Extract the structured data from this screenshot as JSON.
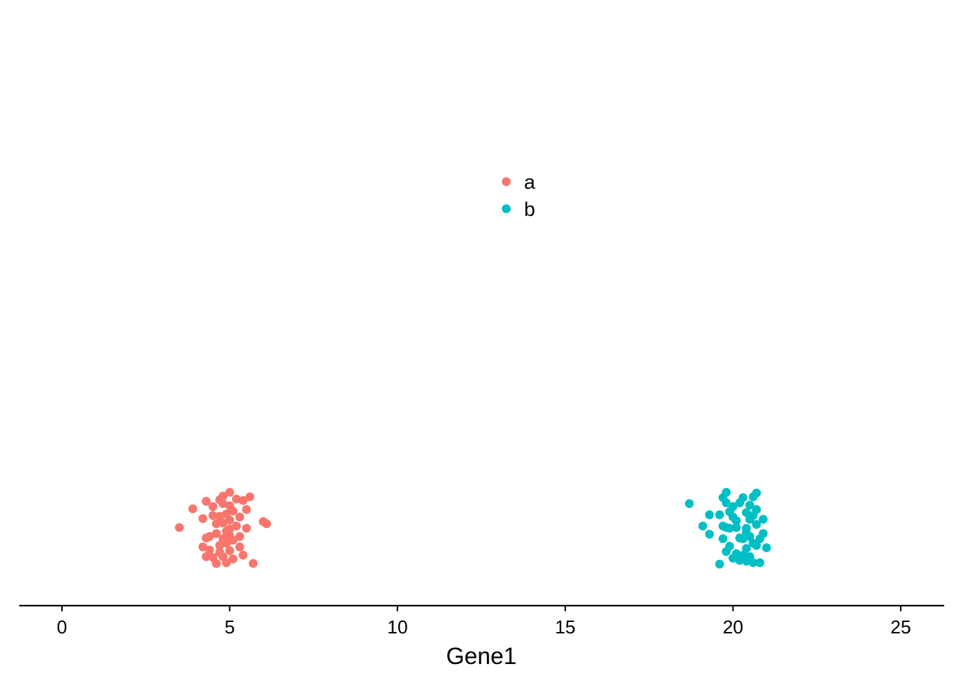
{
  "chart_data": {
    "type": "scatter",
    "title": "",
    "xlabel": "Gene1",
    "ylabel": "",
    "xlim": [
      -1.25,
      26.3
    ],
    "x_ticks": [
      "0",
      "5",
      "10",
      "15",
      "20",
      "25"
    ],
    "grid": false,
    "legend_position": "top-center",
    "series": [
      {
        "name": "a",
        "color": "#F8766D",
        "x": [
          3.5,
          3.9,
          4.2,
          4.2,
          4.3,
          4.3,
          4.3,
          4.4,
          4.4,
          4.5,
          4.5,
          4.5,
          4.6,
          4.6,
          4.6,
          4.7,
          4.7,
          4.7,
          4.7,
          4.8,
          4.8,
          4.8,
          4.8,
          4.8,
          4.9,
          4.9,
          4.9,
          4.9,
          5.0,
          5.0,
          5.0,
          5.0,
          5.0,
          5.0,
          5.1,
          5.1,
          5.1,
          5.2,
          5.2,
          5.3,
          5.3,
          5.3,
          5.4,
          5.4,
          5.5,
          5.5,
          5.6,
          5.7,
          6.0,
          6.1
        ],
        "jitter": [
          0.47,
          0.22,
          0.35,
          0.73,
          0.12,
          0.61,
          0.86,
          0.59,
          0.77,
          0.31,
          0.87,
          0.19,
          0.55,
          0.42,
          0.95,
          0.1,
          0.32,
          0.71,
          0.8,
          0.41,
          0.62,
          0.15,
          0.86,
          0.05,
          0.52,
          0.29,
          0.94,
          0.68,
          0.37,
          0.58,
          0.78,
          0.18,
          0.49,
          0.0,
          0.64,
          0.25,
          0.89,
          0.45,
          0.09,
          0.73,
          0.33,
          0.59,
          0.11,
          0.84,
          0.23,
          0.48,
          0.06,
          0.95,
          0.39,
          0.42
        ],
        "jitter_note": "vertical jitter fraction within band"
      },
      {
        "name": "b",
        "color": "#00BFC4",
        "x": [
          18.7,
          19.1,
          19.3,
          19.3,
          19.6,
          19.6,
          19.7,
          19.7,
          19.8,
          19.8,
          19.8,
          19.8,
          19.9,
          19.9,
          19.9,
          20.0,
          20.0,
          20.0,
          20.1,
          20.1,
          20.1,
          20.2,
          20.2,
          20.3,
          20.3,
          20.3,
          20.4,
          20.4,
          20.4,
          20.4,
          20.5,
          20.5,
          20.5,
          20.5,
          20.6,
          20.6,
          20.6,
          20.6,
          20.7,
          20.7,
          20.7,
          20.8,
          20.8,
          20.9,
          20.9,
          21.0,
          20.7,
          20.2,
          19.7,
          20.4
        ],
        "jitter": [
          0.15,
          0.45,
          0.3,
          0.56,
          0.3,
          0.96,
          0.07,
          0.45,
          0.14,
          0.47,
          0.79,
          0.0,
          0.72,
          0.26,
          0.48,
          0.19,
          0.33,
          0.88,
          0.47,
          0.82,
          0.38,
          0.14,
          0.61,
          0.07,
          0.62,
          0.84,
          0.27,
          0.54,
          0.75,
          0.92,
          0.17,
          0.36,
          0.59,
          0.86,
          0.06,
          0.31,
          0.68,
          0.94,
          0.43,
          0.23,
          0.71,
          0.62,
          0.94,
          0.36,
          0.55,
          0.74,
          0.01,
          0.91,
          0.62,
          0.48
        ],
        "jitter_note": "vertical jitter fraction within band"
      }
    ]
  }
}
